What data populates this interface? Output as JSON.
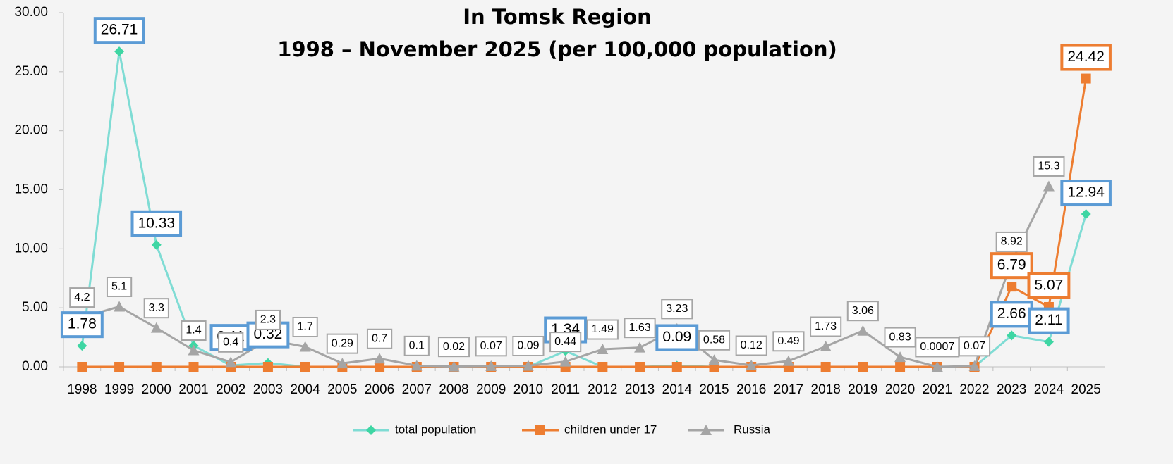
{
  "chart_data": {
    "type": "line",
    "title": "In Tomsk Region",
    "subtitle": "1998 – November 2025 (per 100,000 population)",
    "categories": [
      "1998",
      "1999",
      "2000",
      "2001",
      "2002",
      "2003",
      "2004",
      "2005",
      "2006",
      "2007",
      "2008",
      "2009",
      "2010",
      "2011",
      "2012",
      "2013",
      "2014",
      "2015",
      "2016",
      "2017",
      "2018",
      "2019",
      "2020",
      "2021",
      "2022",
      "2023",
      "2024",
      "2025"
    ],
    "ylim": [
      0,
      30
    ],
    "yticks": [
      {
        "value": 0,
        "label": "0.00"
      },
      {
        "value": 5,
        "label": "5.00"
      },
      {
        "value": 10,
        "label": "10.00"
      },
      {
        "value": 15,
        "label": "15.00"
      },
      {
        "value": 20,
        "label": "20.00"
      },
      {
        "value": 25,
        "label": "25.00"
      },
      {
        "value": 30,
        "label": "30.00"
      }
    ],
    "legend": "bottom",
    "series": [
      {
        "name": "total population",
        "color": "#7fdcd4",
        "marker": "diamond",
        "marker_color": "#3ed6a3",
        "label_border": "#5b9bd5",
        "values": [
          1.78,
          26.71,
          10.33,
          1.8,
          0.11,
          0.32,
          0,
          0,
          0,
          0,
          0,
          0,
          0,
          1.34,
          0,
          0,
          0.09,
          0,
          0,
          0,
          0,
          0,
          0,
          0,
          0,
          2.66,
          2.11,
          12.94
        ],
        "value_labels": [
          "1.78",
          "26.71",
          "10.33",
          null,
          "0.11",
          "0.32",
          null,
          null,
          null,
          null,
          null,
          null,
          null,
          "1.34",
          null,
          null,
          "0.09",
          null,
          null,
          null,
          null,
          null,
          null,
          null,
          null,
          "2.66",
          "2.11",
          "12.94"
        ]
      },
      {
        "name": "children under 17",
        "color": "#ed7d31",
        "marker": "square",
        "marker_color": "#ed7d31",
        "label_border": "#ed7d31",
        "values": [
          0,
          0,
          0,
          0,
          0,
          0,
          0,
          0,
          0,
          0,
          0,
          0,
          0,
          0,
          0,
          0,
          0,
          0,
          0,
          0,
          0,
          0,
          0,
          0,
          0,
          6.79,
          5.07,
          24.42
        ],
        "value_labels": [
          null,
          null,
          null,
          null,
          null,
          null,
          null,
          null,
          null,
          null,
          null,
          null,
          null,
          null,
          null,
          null,
          null,
          null,
          null,
          null,
          null,
          null,
          null,
          null,
          null,
          "6.79",
          "5.07",
          "24.42"
        ]
      },
      {
        "name": "Russia",
        "color": "#a5a5a5",
        "marker": "triangle",
        "marker_color": "#a5a5a5",
        "label_border": "#a5a5a5",
        "values": [
          4.2,
          5.1,
          3.3,
          1.4,
          0.4,
          2.3,
          1.7,
          0.29,
          0.7,
          0.1,
          0.02,
          0.07,
          0.09,
          0.44,
          1.49,
          1.63,
          3.23,
          0.58,
          0.12,
          0.49,
          1.73,
          3.06,
          0.83,
          0.0007,
          0.07,
          8.92,
          15.3,
          null
        ]
      }
    ]
  }
}
